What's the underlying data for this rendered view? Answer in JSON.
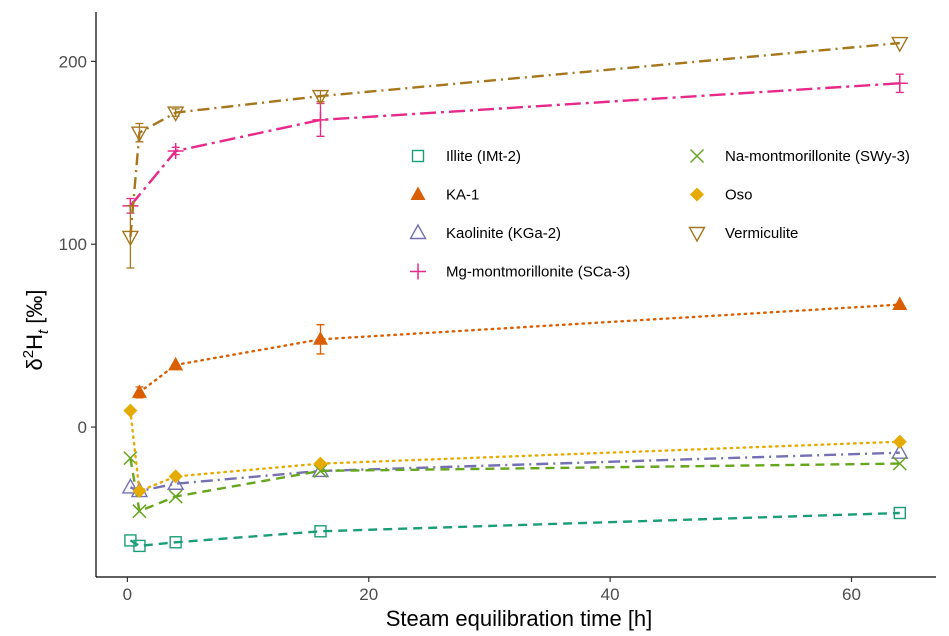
{
  "chart_data": {
    "type": "scatter",
    "xlabel": "Steam equilibration time [h]",
    "ylabel": "δ²H_t  [‰]",
    "xlim": [
      -2.6,
      67
    ],
    "ylim": [
      -82,
      227
    ],
    "xticks": [
      0,
      20,
      40,
      60
    ],
    "yticks": [
      0,
      100,
      200
    ],
    "grid": false,
    "legend_position": "upper-right inside",
    "series": [
      {
        "name": "Illite (IMt-2)",
        "color": "#1b9e77",
        "marker": "open-square",
        "line": "dashed",
        "points": [
          {
            "x": 0.25,
            "y": -62
          },
          {
            "x": 1,
            "y": -65
          },
          {
            "x": 4,
            "y": -63
          },
          {
            "x": 16,
            "y": -57
          },
          {
            "x": 64,
            "y": -47
          }
        ]
      },
      {
        "name": "KA-1",
        "color": "#d95f02",
        "marker": "filled-triangle",
        "line": "dotted",
        "points": [
          {
            "x": 1,
            "y": 19,
            "err": 3
          },
          {
            "x": 4,
            "y": 34
          },
          {
            "x": 16,
            "y": 48,
            "err": 8
          },
          {
            "x": 64,
            "y": 67
          }
        ]
      },
      {
        "name": "Kaolinite (KGa-2)",
        "color": "#7570b3",
        "marker": "open-triangle",
        "line": "dashdot",
        "points": [
          {
            "x": 0.25,
            "y": -33
          },
          {
            "x": 1,
            "y": -35
          },
          {
            "x": 4,
            "y": -31
          },
          {
            "x": 16,
            "y": -24
          },
          {
            "x": 64,
            "y": -14
          }
        ]
      },
      {
        "name": "Mg-montmorillonite (SCa-3)",
        "color": "#e7298a",
        "marker": "plus",
        "line": "longdash-dot",
        "points": [
          {
            "x": 0.25,
            "y": 121,
            "err": 4
          },
          {
            "x": 4,
            "y": 151,
            "err": 2
          },
          {
            "x": 16,
            "y": 168,
            "err": 9
          },
          {
            "x": 64,
            "y": 188,
            "err": 5
          }
        ]
      },
      {
        "name": "Na-montmorillonite (SWy-3)",
        "color": "#66a61e",
        "marker": "cross",
        "line": "dashed",
        "points": [
          {
            "x": 0.25,
            "y": -17
          },
          {
            "x": 1,
            "y": -46
          },
          {
            "x": 4,
            "y": -38
          },
          {
            "x": 16,
            "y": -24
          },
          {
            "x": 64,
            "y": -20
          }
        ]
      },
      {
        "name": "Oso",
        "color": "#e6ab02",
        "marker": "filled-diamond",
        "line": "dotted",
        "points": [
          {
            "x": 0.25,
            "y": 9
          },
          {
            "x": 1,
            "y": -35
          },
          {
            "x": 4,
            "y": -27
          },
          {
            "x": 16,
            "y": -20
          },
          {
            "x": 64,
            "y": -8
          }
        ]
      },
      {
        "name": "Vermiculite",
        "color": "#a6761d",
        "marker": "open-triangle-down",
        "line": "dashdot",
        "points": [
          {
            "x": 0.25,
            "y": 104,
            "err": 17
          },
          {
            "x": 1,
            "y": 161,
            "err": 5
          },
          {
            "x": 4,
            "y": 172,
            "err": 2
          },
          {
            "x": 16,
            "y": 181,
            "err": 3
          },
          {
            "x": 64,
            "y": 210
          }
        ]
      }
    ]
  }
}
